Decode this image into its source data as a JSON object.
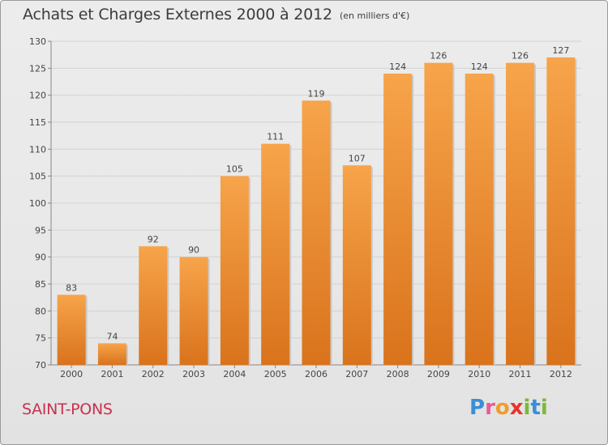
{
  "header": {
    "title": "Achats et Charges Externes 2000 à 2012",
    "unit_note": "(en milliers d'€)"
  },
  "footer": {
    "commune": "SAINT-PONS",
    "logo_text": "Proxiti",
    "logo_colors": [
      "#3a8fd6",
      "#e85a9a",
      "#f39c2a",
      "#e8342e",
      "#7cb83a",
      "#3a8fd6",
      "#7cb83a"
    ]
  },
  "chart_data": {
    "type": "bar",
    "categories": [
      "2000",
      "2001",
      "2002",
      "2003",
      "2004",
      "2005",
      "2006",
      "2007",
      "2008",
      "2009",
      "2010",
      "2011",
      "2012"
    ],
    "values": [
      83,
      74,
      92,
      90,
      105,
      111,
      119,
      107,
      124,
      126,
      124,
      126,
      127
    ],
    "ylim": [
      70,
      130
    ],
    "yticks": [
      70,
      75,
      80,
      85,
      90,
      95,
      100,
      105,
      110,
      115,
      120,
      125,
      130
    ],
    "grid": true,
    "data_labels": true,
    "bar_color_light": "#f7a44a",
    "bar_color_dark": "#d9731c"
  }
}
